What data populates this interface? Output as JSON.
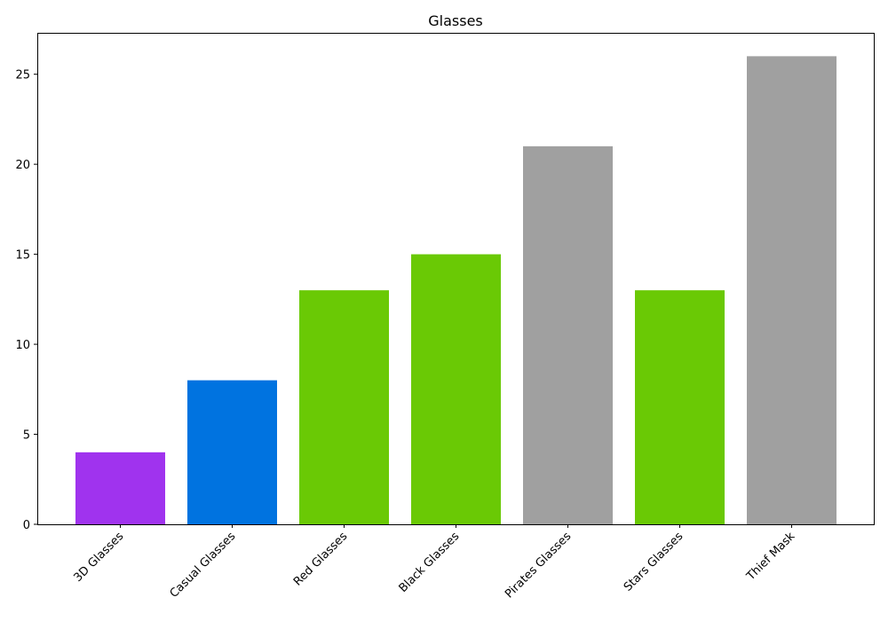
{
  "chart_data": {
    "type": "bar",
    "title": "Glasses",
    "xlabel": "",
    "ylabel": "",
    "categories": [
      "3D Glasses",
      "Casual Glasses",
      "Red Glasses",
      "Black Glasses",
      "Pirates Glasses",
      "Stars Glasses",
      "Thief Mask"
    ],
    "values": [
      4,
      8,
      13,
      15,
      21,
      13,
      26
    ],
    "colors": [
      "#a033ee",
      "#0073e0",
      "#6ac905",
      "#6ac905",
      "#a0a0a0",
      "#6ac905",
      "#a0a0a0"
    ],
    "ylim": [
      0,
      27.3
    ],
    "yticks": [
      0,
      5,
      10,
      15,
      20,
      25
    ],
    "grid": false,
    "legend": "none"
  }
}
